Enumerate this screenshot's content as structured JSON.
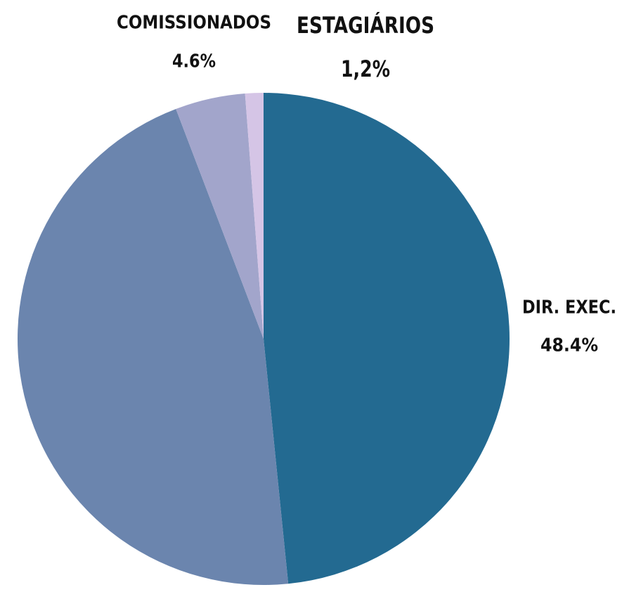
{
  "chart_data": {
    "type": "pie",
    "categories": [
      "DIR. EXEC.",
      null,
      "COMISSIONADOS",
      "ESTAGIÁRIOS"
    ],
    "values": [
      48.4,
      45.8,
      4.6,
      1.2
    ],
    "value_labels": [
      "48.4%",
      null,
      "4.6%",
      "1,2%"
    ],
    "colors": [
      "#236a91",
      "#6b85ae",
      "#a2a5cb",
      "#d5c5e6"
    ]
  }
}
